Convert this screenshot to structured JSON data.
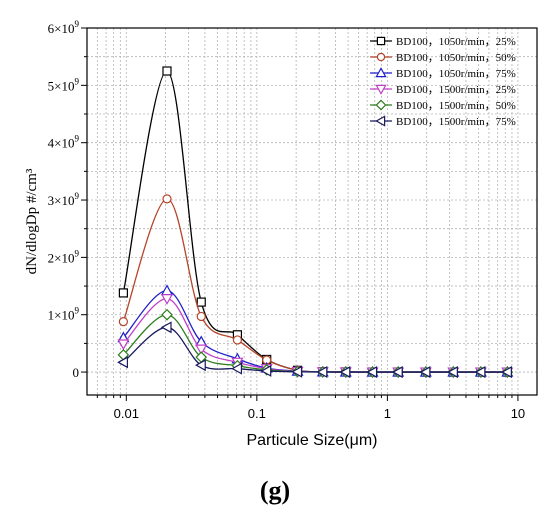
{
  "caption": "(g)",
  "chart_data": {
    "type": "line",
    "xlabel": "Particule Size(μm)",
    "ylabel": "dN/dlogDp #/cm³",
    "x_scale": "log",
    "xlim": [
      0.005,
      14
    ],
    "ylim": [
      -400000000,
      6000000000
    ],
    "x_ticks": [
      {
        "value": 0.01,
        "label": "0.01"
      },
      {
        "value": 0.1,
        "label": "0.1"
      },
      {
        "value": 1,
        "label": "1"
      },
      {
        "value": 10,
        "label": "10"
      }
    ],
    "y_ticks": [
      {
        "value": 0,
        "label": "0"
      },
      {
        "value": 1000000000,
        "label": "1×10",
        "sup": "9"
      },
      {
        "value": 2000000000,
        "label": "2×10",
        "sup": "9"
      },
      {
        "value": 3000000000,
        "label": "3×10",
        "sup": "9"
      },
      {
        "value": 4000000000,
        "label": "4×10",
        "sup": "9"
      },
      {
        "value": 5000000000,
        "label": "5×10",
        "sup": "9"
      },
      {
        "value": 6000000000,
        "label": "6×10",
        "sup": "9"
      }
    ],
    "grid": true,
    "legend_position": "top-right",
    "x": [
      0.0095,
      0.0205,
      0.0375,
      0.071,
      0.119,
      0.205,
      0.32,
      0.48,
      0.77,
      1.21,
      1.97,
      3.2,
      5.2,
      8.3
    ],
    "series": [
      {
        "name": "BD100，1050r/min，25%",
        "marker": "square",
        "color": "#000000",
        "values": [
          1380000000,
          5250000000,
          1220000000,
          650000000,
          220000000,
          30000000,
          5000000,
          2000000,
          1000000,
          1000000,
          0,
          0,
          0,
          0
        ]
      },
      {
        "name": "BD100，1050r/min，50%",
        "marker": "circle",
        "color": "#b5452a",
        "values": [
          880000000,
          3020000000,
          970000000,
          560000000,
          210000000,
          30000000,
          5000000,
          2000000,
          1000000,
          1000000,
          0,
          0,
          0,
          0
        ]
      },
      {
        "name": "BD100，1050r/min，75%",
        "marker": "triangle-up",
        "color": "#1f1fc9",
        "values": [
          600000000,
          1420000000,
          530000000,
          230000000,
          70000000,
          15000000,
          3000000,
          1000000,
          0,
          0,
          0,
          0,
          0,
          0
        ]
      },
      {
        "name": "BD100，1500r/min，25%",
        "marker": "triangle-down",
        "color": "#c040c8",
        "values": [
          490000000,
          1280000000,
          400000000,
          170000000,
          60000000,
          10000000,
          3000000,
          1000000,
          0,
          0,
          0,
          0,
          0,
          0
        ]
      },
      {
        "name": "BD100，1500r/min，50%",
        "marker": "diamond",
        "color": "#2e7d1f",
        "values": [
          300000000,
          1000000000,
          260000000,
          110000000,
          40000000,
          8000000,
          2000000,
          1000000,
          0,
          0,
          0,
          0,
          0,
          0
        ]
      },
      {
        "name": "BD100，1500r/min，75%",
        "marker": "triangle-left",
        "color": "#1a1a5e",
        "values": [
          170000000,
          780000000,
          120000000,
          60000000,
          20000000,
          5000000,
          1000000,
          0,
          0,
          0,
          0,
          0,
          0,
          0
        ]
      }
    ]
  }
}
